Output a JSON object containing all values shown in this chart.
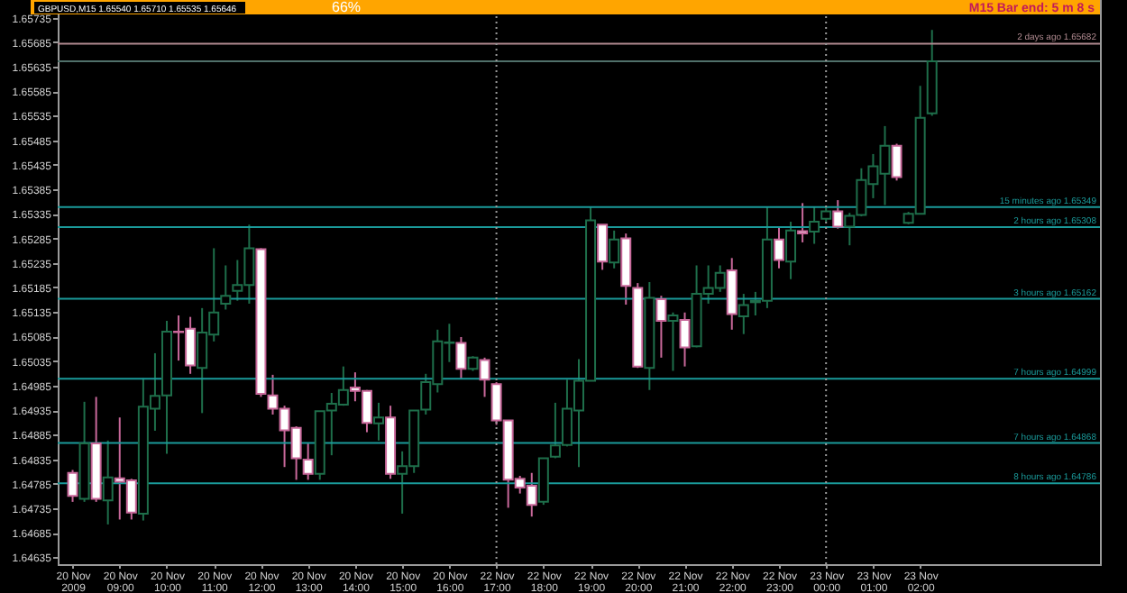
{
  "chart_data": {
    "type": "candlestick",
    "categories": [
      "20 Nov 2009",
      null,
      null,
      null,
      "20 Nov 09:00",
      null,
      null,
      null,
      "20 Nov 10:00",
      null,
      null,
      null,
      "20 Nov 11:00",
      null,
      null,
      null,
      "20 Nov 12:00",
      null,
      null,
      null,
      "20 Nov 13:00",
      null,
      null,
      null,
      "20 Nov 14:00",
      null,
      null,
      null,
      "20 Nov 15:00",
      null,
      null,
      null,
      "20 Nov 16:00",
      null,
      null,
      null,
      "22 Nov 17:00",
      null,
      null,
      null,
      "22 Nov 18:00",
      null,
      null,
      null,
      "22 Nov 19:00",
      null,
      null,
      null,
      "22 Nov 20:00",
      null,
      null,
      null,
      "22 Nov 21:00",
      null,
      null,
      null,
      "22 Nov 22:00",
      null,
      null,
      null,
      "22 Nov 23:00",
      null,
      null,
      null,
      "23 Nov 00:00",
      null,
      null,
      null,
      "23 Nov 01:00",
      null,
      null,
      null,
      "23 Nov 02:00",
      null
    ],
    "ohlc": [
      [
        1.64807,
        1.64813,
        1.64748,
        1.6476
      ],
      [
        1.64754,
        1.64952,
        1.64748,
        1.64867
      ],
      [
        1.64867,
        1.64962,
        1.64748,
        1.64754
      ],
      [
        1.64751,
        1.64873,
        1.64702,
        1.64798
      ],
      [
        1.64796,
        1.6492,
        1.64712,
        1.64789
      ],
      [
        1.64792,
        1.64795,
        1.64712,
        1.64726
      ],
      [
        1.64724,
        1.65,
        1.6471,
        1.64942
      ],
      [
        1.64938,
        1.65051,
        1.64893,
        1.64964
      ],
      [
        1.64965,
        1.65117,
        1.64846,
        1.65095
      ],
      [
        1.65095,
        1.65128,
        1.65036,
        1.65094
      ],
      [
        1.65101,
        1.65125,
        1.65009,
        1.65026
      ],
      [
        1.65021,
        1.65143,
        1.64929,
        1.65093
      ],
      [
        1.65089,
        1.65265,
        1.65075,
        1.65134
      ],
      [
        1.65152,
        1.6523,
        1.6514,
        1.65168
      ],
      [
        1.65178,
        1.65241,
        1.65158,
        1.6519
      ],
      [
        1.6519,
        1.65313,
        1.65152,
        1.65265
      ],
      [
        1.65263,
        1.65265,
        1.64962,
        1.64968
      ],
      [
        1.64965,
        1.65007,
        1.64926,
        1.64938
      ],
      [
        1.64938,
        1.64944,
        1.64819,
        1.64894
      ],
      [
        1.64899,
        1.64902,
        1.64793,
        1.64837
      ],
      [
        1.64834,
        1.64867,
        1.64793,
        1.64805
      ],
      [
        1.64805,
        1.64933,
        1.64793,
        1.64933
      ],
      [
        1.64934,
        1.6497,
        1.64843,
        1.64948
      ],
      [
        1.64946,
        1.65024,
        1.64944,
        1.64976
      ],
      [
        1.64981,
        1.65012,
        1.64953,
        1.64974
      ],
      [
        1.64974,
        1.64976,
        1.6489,
        1.64909
      ],
      [
        1.64908,
        1.6495,
        1.64873,
        1.6492
      ],
      [
        1.6492,
        1.64944,
        1.64795,
        1.64805
      ],
      [
        1.64805,
        1.64851,
        1.64724,
        1.64821
      ],
      [
        1.64821,
        1.64934,
        1.64807,
        1.64934
      ],
      [
        1.64936,
        1.65009,
        1.64926,
        1.64992
      ],
      [
        1.64988,
        1.65099,
        1.64971,
        1.65075
      ],
      [
        1.65072,
        1.65111,
        1.65033,
        1.65073
      ],
      [
        1.65072,
        1.65084,
        1.64999,
        1.65019
      ],
      [
        1.65019,
        1.65045,
        1.65015,
        1.65042
      ],
      [
        1.65037,
        1.65042,
        1.64962,
        1.64997
      ],
      [
        1.64988,
        1.64992,
        1.64905,
        1.64914
      ],
      [
        1.64914,
        1.64914,
        1.64736,
        1.64793
      ],
      [
        1.64795,
        1.64801,
        1.64765,
        1.64777
      ],
      [
        1.64781,
        1.64807,
        1.64718,
        1.64742
      ],
      [
        1.64748,
        1.64837,
        1.64742,
        1.64837
      ],
      [
        1.6484,
        1.6495,
        1.64837,
        1.64863
      ],
      [
        1.64864,
        1.64997,
        1.64861,
        1.64938
      ],
      [
        1.64934,
        1.65039,
        1.64819,
        1.64995
      ],
      [
        1.64995,
        1.65349,
        1.64995,
        1.65322
      ],
      [
        1.65313,
        1.65313,
        1.65221,
        1.65238
      ],
      [
        1.65236,
        1.65301,
        1.65224,
        1.65283
      ],
      [
        1.65285,
        1.65295,
        1.6515,
        1.65188
      ],
      [
        1.65184,
        1.65194,
        1.65021,
        1.65024
      ],
      [
        1.65021,
        1.65196,
        1.64976,
        1.65164
      ],
      [
        1.65161,
        1.65168,
        1.65042,
        1.65117
      ],
      [
        1.65117,
        1.65134,
        1.65015,
        1.65128
      ],
      [
        1.65119,
        1.65134,
        1.65024,
        1.65063
      ],
      [
        1.65065,
        1.6523,
        1.65063,
        1.65172
      ],
      [
        1.65172,
        1.6523,
        1.65152,
        1.65184
      ],
      [
        1.65184,
        1.6523,
        1.65176,
        1.65215
      ],
      [
        1.6522,
        1.65245,
        1.65099,
        1.65131
      ],
      [
        1.65126,
        1.65172,
        1.6509,
        1.65149
      ],
      [
        1.65155,
        1.65176,
        1.65128,
        1.65158
      ],
      [
        1.65158,
        1.65349,
        1.65143,
        1.65283
      ],
      [
        1.65283,
        1.65309,
        1.65224,
        1.65241
      ],
      [
        1.65238,
        1.65319,
        1.65202,
        1.65301
      ],
      [
        1.653,
        1.65357,
        1.65277,
        1.65295
      ],
      [
        1.65299,
        1.65349,
        1.65274,
        1.65319
      ],
      [
        1.65325,
        1.65349,
        1.65319,
        1.6534
      ],
      [
        1.6534,
        1.65363,
        1.65305,
        1.65309
      ],
      [
        1.65309,
        1.65337,
        1.65271,
        1.65331
      ],
      [
        1.65333,
        1.65428,
        1.6533,
        1.65404
      ],
      [
        1.65396,
        1.65457,
        1.65367,
        1.65432
      ],
      [
        1.65417,
        1.65514,
        1.65353,
        1.65474
      ],
      [
        1.65474,
        1.65478,
        1.65403,
        1.6541
      ],
      [
        1.65317,
        1.65339,
        1.65314,
        1.65335
      ],
      [
        1.65335,
        1.65596,
        1.65335,
        1.65531
      ],
      [
        1.6554,
        1.6571,
        1.65535,
        1.65646
      ]
    ],
    "colors": [
      "#c8689a",
      "#1e6e4a",
      "#c8689a",
      "#1e6e4a",
      "#c8689a",
      "#c8689a",
      "#1e6e4a",
      "#1e6e4a",
      "#1e6e4a",
      "#c8689a",
      "#c8689a",
      "#1e6e4a",
      "#1e6e4a",
      "#1e6e4a",
      "#1e6e4a",
      "#1e6e4a",
      "#c8689a",
      "#c8689a",
      "#c8689a",
      "#c8689a",
      "#c8689a",
      "#1e6e4a",
      "#1e6e4a",
      "#1e6e4a",
      "#c8689a",
      "#c8689a",
      "#1e6e4a",
      "#c8689a",
      "#1e6e4a",
      "#1e6e4a",
      "#1e6e4a",
      "#1e6e4a",
      "#1e6e4a",
      "#c8689a",
      "#1e6e4a",
      "#c8689a",
      "#c8689a",
      "#c8689a",
      "#c8689a",
      "#c8689a",
      "#1e6e4a",
      "#1e6e4a",
      "#1e6e4a",
      "#1e6e4a",
      "#1e6e4a",
      "#c8689a",
      "#1e6e4a",
      "#c8689a",
      "#c8689a",
      "#1e6e4a",
      "#c8689a",
      "#1e6e4a",
      "#c8689a",
      "#1e6e4a",
      "#1e6e4a",
      "#1e6e4a",
      "#c8689a",
      "#1e6e4a",
      "#1e6e4a",
      "#1e6e4a",
      "#c8689a",
      "#1e6e4a",
      "#c8689a",
      "#1e6e4a",
      "#1e6e4a",
      "#c8689a",
      "#1e6e4a",
      "#1e6e4a",
      "#1e6e4a",
      "#1e6e4a",
      "#c8689a",
      "#1e6e4a",
      "#1e6e4a",
      "#1e6e4a"
    ],
    "ylim": [
      1.64621,
      1.65771
    ],
    "yticks": [
      1.64635,
      1.64685,
      1.64735,
      1.64785,
      1.64835,
      1.64885,
      1.64935,
      1.64985,
      1.65035,
      1.65085,
      1.65135,
      1.65185,
      1.65235,
      1.65285,
      1.65335,
      1.65385,
      1.65435,
      1.65485,
      1.65535,
      1.65585,
      1.65635,
      1.65685,
      1.65735
    ],
    "grid": false,
    "ref_lines": [
      {
        "axis": "y",
        "value": 1.65682,
        "label": "2 days ago 1.65682",
        "color": "#b08a90",
        "line_style": "solid"
      },
      {
        "axis": "y",
        "value": 1.65646,
        "label": null,
        "color": "#50706a",
        "line_style": "solid"
      },
      {
        "axis": "y",
        "value": 1.65349,
        "label": "15 minutes ago 1.65349",
        "color": "#1a9a9a",
        "line_style": "solid"
      },
      {
        "axis": "y",
        "value": 1.65308,
        "label": "2 hours ago 1.65308",
        "color": "#1a9a9a",
        "line_style": "solid"
      },
      {
        "axis": "y",
        "value": 1.65162,
        "label": "3 hours ago 1.65162",
        "color": "#1a9a9a",
        "line_style": "solid"
      },
      {
        "axis": "y",
        "value": 1.64999,
        "label": "7 hours ago 1.64999",
        "color": "#1a9a9a",
        "line_style": "solid"
      },
      {
        "axis": "y",
        "value": 1.64868,
        "label": "7 hours ago 1.64868",
        "color": "#1a9a9a",
        "line_style": "solid"
      },
      {
        "axis": "y",
        "value": 1.64786,
        "label": "8 hours ago 1.64786",
        "color": "#1a9a9a",
        "line_style": "solid"
      },
      {
        "axis": "x",
        "value": "22 Nov 17:00",
        "label": null,
        "color": "#9a9a9a",
        "line_style": "dotted"
      },
      {
        "axis": "x",
        "value": "23 Nov 00:00",
        "label": null,
        "color": "#9a9a9a",
        "line_style": "dotted"
      }
    ],
    "annotations": [
      "GBPUSD,M15 1.65540 1.65710 1.65535 1.65646",
      "66%",
      "M15 Bar end: 5 m 8 s"
    ]
  }
}
